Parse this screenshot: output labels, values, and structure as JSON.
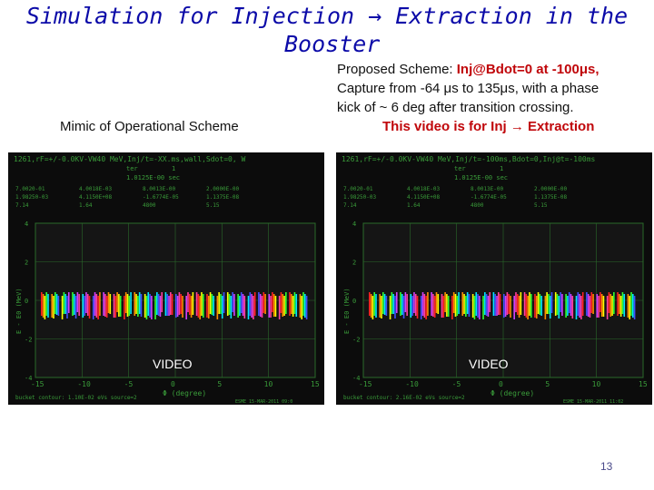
{
  "slide": {
    "title_line1": "Simulation for Injection → Extraction in the",
    "title_line2": "Booster",
    "proposed": {
      "prefix": "Proposed Scheme: ",
      "highlight": "Inj@Bdot=0 at -100μs,",
      "line2": "Capture from -64 μs to 135μs, with a phase",
      "line3": "kick of ~ 6 deg after transition crossing.",
      "line4": "This video is for Inj → Extraction"
    },
    "left_caption": "Mimic of Operational Scheme",
    "page_number": "13"
  },
  "panels": [
    {
      "video_label": "VIDEO",
      "header": "1261,rF=+/-0.0KV-VW40 MeV,Inj/t=-XX.ms,wall,Sdot=0, W",
      "turn_label": "ter",
      "turn_value": "1",
      "time_value": "1.0125E-00 sec",
      "param_rows": [
        [
          "7.0020-01",
          "4.0018E-03",
          "8.0013E-00",
          "2.0000E-00"
        ],
        [
          "1.98250-03",
          "4.1150E+08",
          "-1.6774E-05",
          "1.1375E-08"
        ],
        [
          "7.14",
          "1.64",
          "4800",
          "5.15"
        ]
      ],
      "y_label": "E - E0 (MeV)",
      "x_label": "Φ (degree)",
      "x_ticks": [
        "-15",
        "-10",
        "-5",
        "0",
        "5",
        "10",
        "15"
      ],
      "y_ticks": [
        "4",
        "2",
        "0",
        "-2",
        "-4"
      ],
      "footer_left": "bucket contour: 1.10E-02 eVs source=2",
      "footer_right": "ESME 15-MAR-2011 09:0"
    },
    {
      "video_label": "VIDEO",
      "header": "1261,rF=+/-0.0KV-VW40 MeV,Inj/t=-100ms,Bdot=0,Inj@t=-100ms",
      "turn_label": "ter",
      "turn_value": "1",
      "time_value": "1.0125E-00 sec",
      "param_rows": [
        [
          "7.0020-01",
          "4.0018E-03",
          "8.0013E-00",
          "2.0000E-00"
        ],
        [
          "1.98250-03",
          "4.1150E+08",
          "-1.6774E-05",
          "1.1375E-08"
        ],
        [
          "7.14",
          "1.64",
          "4800",
          "5.15"
        ]
      ],
      "y_label": "E - E0 (MeV)",
      "x_label": "Φ (degree)",
      "x_ticks": [
        "-15",
        "-10",
        "-5",
        "0",
        "5",
        "10",
        "15"
      ],
      "y_ticks": [
        "4",
        "2",
        "0",
        "-2",
        "-4"
      ],
      "footer_left": "bucket contour: 2.16E-02 eVs source=2",
      "footer_right": "ESME 15-MAR-2011 11:02"
    }
  ],
  "colors": {
    "title": "#0b0aa8",
    "highlight": "#c0060a",
    "panel_bg": "#0c0c0c",
    "plot_bg": "#151515",
    "grid": "#2a6a2a",
    "axis_text": "#3a9c3a",
    "beam": [
      "#ff2020",
      "#ff8c00",
      "#ffff00",
      "#30ff30",
      "#00e5ff",
      "#4050ff",
      "#d040ff",
      "#ff40a0"
    ]
  }
}
